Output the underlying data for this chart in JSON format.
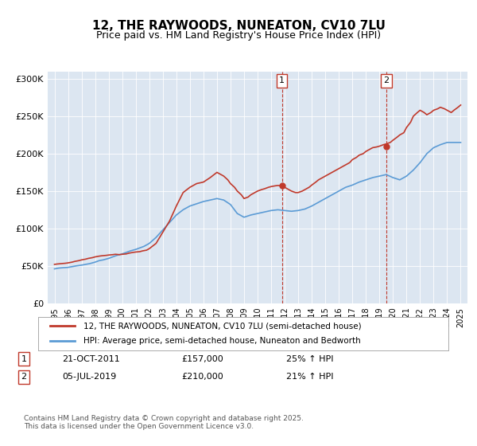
{
  "title": "12, THE RAYWOODS, NUNEATON, CV10 7LU",
  "subtitle": "Price paid vs. HM Land Registry's House Price Index (HPI)",
  "legend_line1": "12, THE RAYWOODS, NUNEATON, CV10 7LU (semi-detached house)",
  "legend_line2": "HPI: Average price, semi-detached house, Nuneaton and Bedworth",
  "footer": "Contains HM Land Registry data © Crown copyright and database right 2025.\nThis data is licensed under the Open Government Licence v3.0.",
  "annotation1": {
    "label": "1",
    "date": "21-OCT-2011",
    "price": "£157,000",
    "pct": "25% ↑ HPI",
    "x": 2011.8
  },
  "annotation2": {
    "label": "2",
    "date": "05-JUL-2019",
    "price": "£210,000",
    "pct": "21% ↑ HPI",
    "x": 2019.5
  },
  "ylim": [
    0,
    310000
  ],
  "xlim": [
    1994.5,
    2025.5
  ],
  "yticks": [
    0,
    50000,
    100000,
    150000,
    200000,
    250000,
    300000
  ],
  "ytick_labels": [
    "£0",
    "£50K",
    "£100K",
    "£150K",
    "£200K",
    "£250K",
    "£300K"
  ],
  "xticks": [
    1995,
    1996,
    1997,
    1998,
    1999,
    2000,
    2001,
    2002,
    2003,
    2004,
    2005,
    2006,
    2007,
    2008,
    2009,
    2010,
    2011,
    2012,
    2013,
    2014,
    2015,
    2016,
    2017,
    2018,
    2019,
    2020,
    2021,
    2022,
    2023,
    2024,
    2025
  ],
  "red_color": "#c0392b",
  "blue_color": "#5b9bd5",
  "bg_color": "#dce6f1",
  "plot_bg": "#ffffff",
  "marker1_x": 2011.8,
  "marker1_y": 157000,
  "marker2_x": 2019.5,
  "marker2_y": 210000,
  "vline1_x": 2011.8,
  "vline2_x": 2019.5,
  "red_x": [
    1995.0,
    1995.2,
    1995.5,
    1995.8,
    1996.0,
    1996.3,
    1996.5,
    1996.8,
    1997.0,
    1997.3,
    1997.5,
    1997.8,
    1998.0,
    1998.3,
    1998.5,
    1998.8,
    1999.0,
    1999.3,
    1999.5,
    1999.8,
    2000.0,
    2000.3,
    2000.5,
    2000.8,
    2001.0,
    2001.3,
    2001.5,
    2001.8,
    2002.0,
    2002.5,
    2003.0,
    2003.5,
    2004.0,
    2004.5,
    2005.0,
    2005.5,
    2006.0,
    2006.5,
    2007.0,
    2007.3,
    2007.5,
    2007.8,
    2008.0,
    2008.3,
    2008.5,
    2008.8,
    2009.0,
    2009.3,
    2009.5,
    2009.8,
    2010.0,
    2010.3,
    2010.5,
    2010.8,
    2011.0,
    2011.3,
    2011.5,
    2011.8,
    2012.0,
    2012.3,
    2012.5,
    2012.8,
    2013.0,
    2013.3,
    2013.5,
    2013.8,
    2014.0,
    2014.3,
    2014.5,
    2014.8,
    2015.0,
    2015.3,
    2015.5,
    2015.8,
    2016.0,
    2016.3,
    2016.5,
    2016.8,
    2017.0,
    2017.3,
    2017.5,
    2017.8,
    2018.0,
    2018.3,
    2018.5,
    2018.8,
    2019.0,
    2019.3,
    2019.5,
    2019.8,
    2020.0,
    2020.3,
    2020.5,
    2020.8,
    2021.0,
    2021.3,
    2021.5,
    2021.8,
    2022.0,
    2022.3,
    2022.5,
    2022.8,
    2023.0,
    2023.3,
    2023.5,
    2023.8,
    2024.0,
    2024.3,
    2024.5,
    2024.8,
    2025.0
  ],
  "red_y": [
    52000,
    52500,
    53000,
    53500,
    54000,
    55000,
    56000,
    57000,
    58000,
    59000,
    60000,
    61000,
    62000,
    63000,
    63500,
    64000,
    64500,
    65000,
    65500,
    65000,
    65500,
    66000,
    67000,
    68000,
    68500,
    69000,
    70000,
    71000,
    73000,
    80000,
    95000,
    110000,
    130000,
    148000,
    155000,
    160000,
    162000,
    168000,
    175000,
    172000,
    170000,
    165000,
    160000,
    155000,
    150000,
    145000,
    140000,
    142000,
    145000,
    148000,
    150000,
    152000,
    153000,
    155000,
    156000,
    157000,
    157500,
    157000,
    155000,
    152000,
    150000,
    148000,
    148000,
    150000,
    152000,
    155000,
    158000,
    162000,
    165000,
    168000,
    170000,
    173000,
    175000,
    178000,
    180000,
    183000,
    185000,
    188000,
    192000,
    195000,
    198000,
    200000,
    203000,
    206000,
    208000,
    209000,
    210000,
    212000,
    213000,
    215000,
    218000,
    222000,
    225000,
    228000,
    235000,
    242000,
    250000,
    255000,
    258000,
    255000,
    252000,
    255000,
    258000,
    260000,
    262000,
    260000,
    258000,
    255000,
    258000,
    262000,
    265000
  ],
  "blue_x": [
    1995.0,
    1995.3,
    1995.6,
    1996.0,
    1996.3,
    1996.6,
    1997.0,
    1997.3,
    1997.6,
    1998.0,
    1998.3,
    1998.6,
    1999.0,
    1999.3,
    1999.6,
    2000.0,
    2000.3,
    2000.6,
    2001.0,
    2001.3,
    2001.6,
    2002.0,
    2002.5,
    2003.0,
    2003.5,
    2004.0,
    2004.5,
    2005.0,
    2005.5,
    2006.0,
    2006.5,
    2007.0,
    2007.5,
    2008.0,
    2008.5,
    2009.0,
    2009.5,
    2010.0,
    2010.5,
    2011.0,
    2011.5,
    2012.0,
    2012.5,
    2013.0,
    2013.5,
    2014.0,
    2014.5,
    2015.0,
    2015.5,
    2016.0,
    2016.5,
    2017.0,
    2017.5,
    2018.0,
    2018.5,
    2019.0,
    2019.5,
    2020.0,
    2020.5,
    2021.0,
    2021.5,
    2022.0,
    2022.5,
    2023.0,
    2023.5,
    2024.0,
    2024.5,
    2025.0
  ],
  "blue_y": [
    46000,
    47000,
    47500,
    48000,
    49000,
    50000,
    51000,
    52000,
    53000,
    55000,
    57000,
    58000,
    60000,
    62000,
    64000,
    66000,
    68000,
    70000,
    72000,
    74000,
    76000,
    80000,
    88000,
    98000,
    108000,
    118000,
    125000,
    130000,
    133000,
    136000,
    138000,
    140000,
    138000,
    132000,
    120000,
    115000,
    118000,
    120000,
    122000,
    124000,
    125000,
    124000,
    123000,
    124000,
    126000,
    130000,
    135000,
    140000,
    145000,
    150000,
    155000,
    158000,
    162000,
    165000,
    168000,
    170000,
    172000,
    168000,
    165000,
    170000,
    178000,
    188000,
    200000,
    208000,
    212000,
    215000,
    215000,
    215000
  ]
}
